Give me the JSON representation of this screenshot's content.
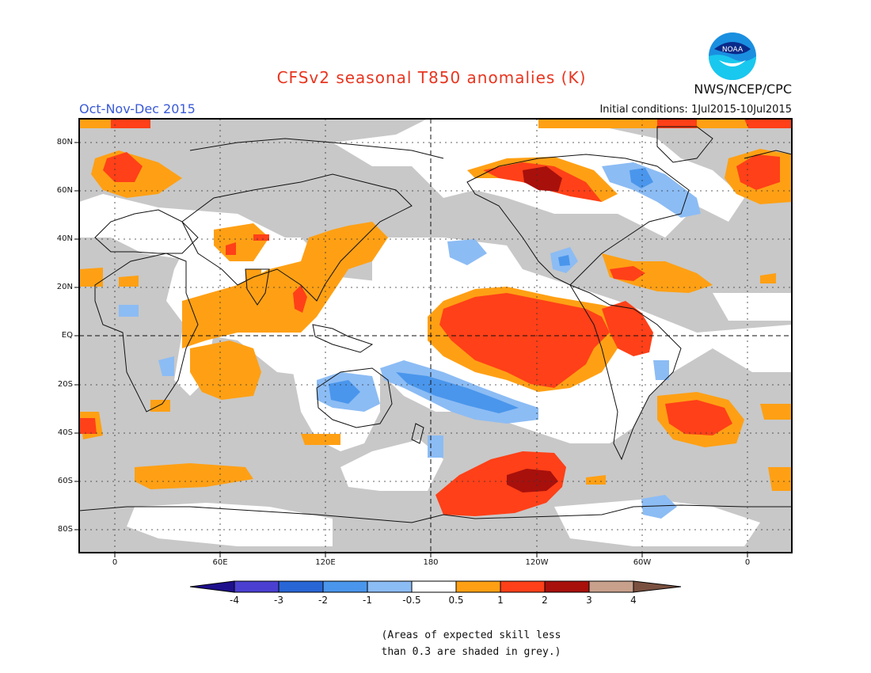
{
  "header": {
    "title": "CFSv2 seasonal T850 anomalies (K)",
    "season": "Oct-Nov-Dec 2015",
    "initial_conditions": "Initial conditions: 1Jul2015-10Jul2015",
    "agency": "NWS/NCEP/CPC",
    "logo_text": "NOAA"
  },
  "map": {
    "lat_labels": [
      "80N",
      "60N",
      "40N",
      "20N",
      "EQ",
      "20S",
      "40S",
      "60S",
      "80S"
    ],
    "lon_labels": [
      "0",
      "60E",
      "120E",
      "180",
      "120W",
      "60W",
      "0"
    ],
    "skill_mask_color": "#c8c8c8",
    "ocean_land_background": "#ffffff"
  },
  "legend": {
    "tick_labels": [
      "-4",
      "-3",
      "-2",
      "-1",
      "-0.5",
      "0.5",
      "1",
      "2",
      "3",
      "4"
    ],
    "colors": [
      "#1e0f8c",
      "#4a3fd0",
      "#2866d6",
      "#4a96ec",
      "#8cbcf4",
      "#ffffff",
      "#ffa014",
      "#ff4018",
      "#a8100c",
      "#c8a08c",
      "#7a5040"
    ]
  },
  "footnote": {
    "line1": "(Areas of expected skill less",
    "line2": "than 0.3 are shaded in grey.)"
  }
}
